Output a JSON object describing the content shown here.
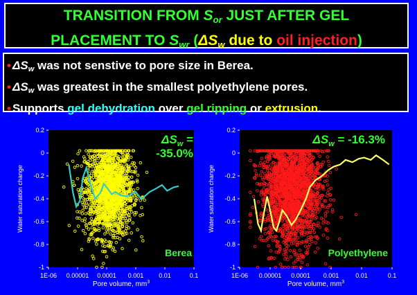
{
  "title": {
    "line1_a": "TRANSITION FROM ",
    "line1_s": "S",
    "line1_sub": "or",
    "line1_b": " JUST AFTER GEL",
    "line2_a": "PLACEMENT TO ",
    "line2_s": "S",
    "line2_sub": "wr",
    "line2_open": " (",
    "line2_delta": "ΔS",
    "line2_delta_sub": "w",
    "line2_mid": " due to ",
    "line2_red": "oil injection",
    "line2_close": ")"
  },
  "bullets": [
    {
      "delta": "ΔS",
      "sub": "w",
      "text": " was not senstive to pore size in Berea."
    },
    {
      "delta": "ΔS",
      "sub": "w",
      "text": " was greatest in the smallest polyethylene pores."
    },
    {
      "prefix": "Supports ",
      "cyan": "gel dehydration",
      "mid1": " over ",
      "green": "gel ripping",
      "mid2": " or ",
      "yellow": "extrusion",
      "end": "."
    }
  ],
  "colors": {
    "background": "#0000ff",
    "panel": "#000000",
    "green": "#33ff33",
    "yellow": "#ffff00",
    "red": "#ff2020",
    "cyan": "#33ffff"
  },
  "chart_data": [
    {
      "type": "scatter",
      "panel_label": "Berea",
      "annotation": "ΔS",
      "annotation_sub": "w",
      "annotation_value_l1": " =",
      "annotation_value_l2": "-35.0%",
      "xlabel": "Pore volume, mm",
      "xlabel_sup": "3",
      "ylabel": "Water saturation change",
      "xscale": "log",
      "xlim": [
        1e-06,
        0.1
      ],
      "ylim": [
        -1,
        0.2
      ],
      "xticks": [
        "1E-06",
        "0.00001",
        "0.0001",
        "0.001",
        "0.01",
        "0.1"
      ],
      "yticks": [
        "0.2",
        "0",
        "-0.2",
        "-0.4",
        "-0.6",
        "-0.8",
        "-1"
      ],
      "point_color": "#ffff00",
      "line_color": "#33cccc",
      "approx_point_count": 1800,
      "point_cloud": {
        "x_center": 0.00012,
        "x_spread_log10": 0.75,
        "y_center": -0.33,
        "y_spread": 0.27
      },
      "trend_line": {
        "x": [
          5e-06,
          7e-06,
          9e-06,
          1.2e-05,
          1.5e-05,
          2e-05,
          3e-05,
          4e-05,
          6e-05,
          8e-05,
          0.0001,
          0.00015,
          0.0002,
          0.0003,
          0.0005,
          0.0008,
          0.001,
          0.0015,
          0.002,
          0.003,
          0.005,
          0.008,
          0.012,
          0.02,
          0.03
        ],
        "y": [
          -0.1,
          -0.35,
          -0.47,
          -0.42,
          -0.22,
          -0.13,
          -0.3,
          -0.4,
          -0.35,
          -0.27,
          -0.3,
          -0.36,
          -0.34,
          -0.37,
          -0.38,
          -0.35,
          -0.34,
          -0.4,
          -0.38,
          -0.34,
          -0.31,
          -0.28,
          -0.33,
          -0.3,
          -0.29
        ]
      }
    },
    {
      "type": "scatter",
      "panel_label": "Polyethylene",
      "annotation": "ΔS",
      "annotation_sub": "w",
      "annotation_value_l1": " = -16.3%",
      "annotation_value_l2": "",
      "xlabel": "Pore volume, mm",
      "xlabel_sup": "3",
      "ylabel": "Water saturation change",
      "xscale": "log",
      "xlim": [
        1e-06,
        0.1
      ],
      "ylim": [
        -1,
        0.2
      ],
      "xticks": [
        "1E-06",
        "0.00001",
        "0.0001",
        "0.001",
        "0.01",
        "0.1"
      ],
      "yticks": [
        "0.2",
        "0",
        "-0.2",
        "-0.4",
        "-0.6",
        "-0.8",
        "-1"
      ],
      "point_color": "#ff1a1a",
      "line_color": "#ffff66",
      "approx_point_count": 2400,
      "point_cloud": {
        "x_center": 5e-05,
        "x_spread_log10": 0.9,
        "y_center": -0.3,
        "y_spread": 0.35
      },
      "trend_line": {
        "x": [
          3e-06,
          4e-06,
          5e-06,
          6e-06,
          8e-06,
          1e-05,
          1.3e-05,
          1.6e-05,
          2e-05,
          2.5e-05,
          3.5e-05,
          5e-05,
          7e-05,
          0.0001,
          0.00015,
          0.0002,
          0.0003,
          0.0005,
          0.0008,
          0.0012,
          0.002,
          0.003,
          0.005,
          0.008,
          0.012,
          0.02,
          0.03,
          0.05,
          0.08
        ],
        "y": [
          -0.4,
          -0.62,
          -0.68,
          -0.55,
          -0.38,
          -0.5,
          -0.65,
          -0.68,
          -0.6,
          -0.5,
          -0.55,
          -0.63,
          -0.58,
          -0.5,
          -0.4,
          -0.3,
          -0.24,
          -0.2,
          -0.15,
          -0.12,
          -0.1,
          -0.06,
          -0.08,
          -0.05,
          -0.04,
          -0.06,
          -0.02,
          -0.06,
          -0.1
        ]
      }
    }
  ]
}
